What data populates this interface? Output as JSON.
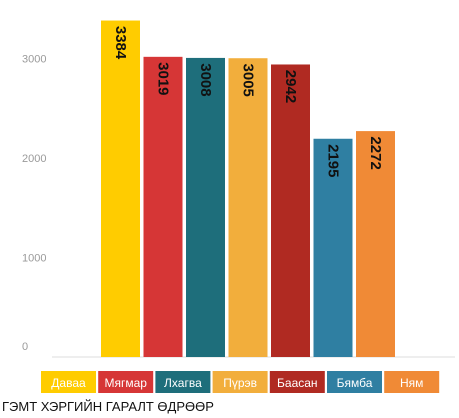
{
  "chart_data": {
    "type": "bar",
    "categories": [
      "Даваа",
      "Мягмар",
      "Лхагва",
      "Пүрэв",
      "Баасан",
      "Бямба",
      "Ням"
    ],
    "values": [
      3384,
      3019,
      3008,
      3005,
      2942,
      2195,
      2272
    ],
    "colors": [
      "#ffcc00",
      "#d63636",
      "#1e6e7b",
      "#f2ae3c",
      "#b02a22",
      "#2f7fa2",
      "#f08a36"
    ],
    "title": "ГЭМТ ХЭРГИЙН ГАРАЛТ ӨДРӨӨР",
    "y_ticks": [
      0,
      1000,
      2000,
      3000
    ],
    "ylim": [
      0,
      3500
    ],
    "grid": false,
    "legend_position": "bottom"
  }
}
